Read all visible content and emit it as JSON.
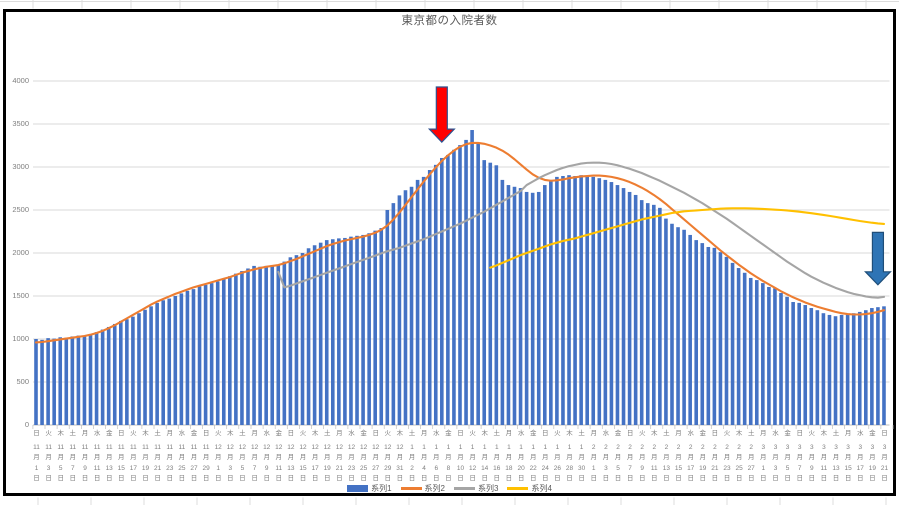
{
  "title": "東京都の入院者数",
  "legend": {
    "items": [
      {
        "label": "系列1",
        "swatch": "bar",
        "color": "#4472C4"
      },
      {
        "label": "系列2",
        "swatch": "line",
        "color": "#ED7D31"
      },
      {
        "label": "系列3",
        "swatch": "line",
        "color": "#A5A5A5"
      },
      {
        "label": "系列4",
        "swatch": "line",
        "color": "#FFC000"
      }
    ]
  },
  "axes": {
    "y_tick_labels": [
      "0",
      "500",
      "1000",
      "1500",
      "2000",
      "2500",
      "3000",
      "3500",
      "4000"
    ],
    "x_tick_labels": [
      [
        "日",
        11,
        1
      ],
      [
        "火",
        11,
        3
      ],
      [
        "木",
        11,
        5
      ],
      [
        "土",
        11,
        7
      ],
      [
        "月",
        11,
        9
      ],
      [
        "水",
        11,
        11
      ],
      [
        "金",
        11,
        13
      ],
      [
        "日",
        11,
        15
      ],
      [
        "火",
        11,
        17
      ],
      [
        "木",
        11,
        19
      ],
      [
        "土",
        11,
        21
      ],
      [
        "月",
        11,
        23
      ],
      [
        "水",
        11,
        25
      ],
      [
        "金",
        11,
        27
      ],
      [
        "日",
        11,
        29
      ],
      [
        "火",
        12,
        1
      ],
      [
        "木",
        12,
        3
      ],
      [
        "土",
        12,
        5
      ],
      [
        "月",
        12,
        7
      ],
      [
        "水",
        12,
        9
      ],
      [
        "金",
        12,
        11
      ],
      [
        "日",
        12,
        13
      ],
      [
        "火",
        12,
        15
      ],
      [
        "木",
        12,
        17
      ],
      [
        "土",
        12,
        19
      ],
      [
        "月",
        12,
        21
      ],
      [
        "水",
        12,
        23
      ],
      [
        "金",
        12,
        25
      ],
      [
        "日",
        12,
        27
      ],
      [
        "火",
        12,
        29
      ],
      [
        "木",
        12,
        31
      ],
      [
        "土",
        1,
        2
      ],
      [
        "月",
        1,
        4
      ],
      [
        "水",
        1,
        6
      ],
      [
        "金",
        1,
        8
      ],
      [
        "日",
        1,
        10
      ],
      [
        "火",
        1,
        12
      ],
      [
        "木",
        1,
        14
      ],
      [
        "土",
        1,
        16
      ],
      [
        "月",
        1,
        18
      ],
      [
        "水",
        1,
        20
      ],
      [
        "金",
        1,
        22
      ],
      [
        "日",
        1,
        24
      ],
      [
        "火",
        1,
        26
      ],
      [
        "木",
        1,
        28
      ],
      [
        "土",
        1,
        30
      ],
      [
        "月",
        2,
        1
      ],
      [
        "水",
        2,
        3
      ],
      [
        "金",
        2,
        5
      ],
      [
        "日",
        2,
        7
      ],
      [
        "火",
        2,
        9
      ],
      [
        "木",
        2,
        11
      ],
      [
        "土",
        2,
        13
      ],
      [
        "月",
        2,
        15
      ],
      [
        "水",
        2,
        17
      ],
      [
        "金",
        2,
        19
      ],
      [
        "日",
        2,
        21
      ],
      [
        "火",
        2,
        23
      ],
      [
        "木",
        2,
        25
      ],
      [
        "土",
        2,
        27
      ],
      [
        "月",
        3,
        1
      ],
      [
        "水",
        3,
        3
      ],
      [
        "金",
        3,
        5
      ],
      [
        "日",
        3,
        7
      ],
      [
        "火",
        3,
        9
      ],
      [
        "木",
        3,
        11
      ],
      [
        "土",
        3,
        13
      ],
      [
        "月",
        3,
        15
      ],
      [
        "水",
        3,
        17
      ],
      [
        "金",
        3,
        19
      ],
      [
        "日",
        3,
        21
      ]
    ]
  },
  "chart_data": {
    "type": "combo",
    "title": "東京都の入院者数",
    "x_months": [
      {
        "month": 11,
        "days": 30
      },
      {
        "month": 12,
        "days": 31
      },
      {
        "month": 1,
        "days": 31
      },
      {
        "month": 2,
        "days": 28
      },
      {
        "month": 3,
        "days": 21
      }
    ],
    "x_label_interval_days": 2,
    "ylim": [
      0,
      4000
    ],
    "y_ticks": [
      0,
      500,
      1000,
      1500,
      2000,
      2500,
      3000,
      3500,
      4000
    ],
    "grid": "horizontal",
    "legend_position": "bottom",
    "series": [
      {
        "name": "系列1",
        "type": "bar",
        "color": "#4472C4",
        "start": 0,
        "values": [
          1000,
          990,
          1010,
          1005,
          1020,
          1015,
          1030,
          1040,
          1030,
          1050,
          1080,
          1110,
          1140,
          1175,
          1210,
          1230,
          1260,
          1300,
          1340,
          1380,
          1420,
          1450,
          1470,
          1500,
          1530,
          1560,
          1580,
          1610,
          1630,
          1650,
          1670,
          1700,
          1730,
          1760,
          1790,
          1820,
          1850,
          1840,
          1850,
          1855,
          1860,
          1900,
          1950,
          1975,
          2000,
          2055,
          2090,
          2120,
          2150,
          2160,
          2170,
          2175,
          2190,
          2200,
          2210,
          2230,
          2260,
          2290,
          2500,
          2580,
          2670,
          2730,
          2770,
          2850,
          2885,
          2965,
          3025,
          3105,
          3140,
          3200,
          3255,
          3315,
          3430,
          3280,
          3080,
          3050,
          3020,
          2850,
          2790,
          2770,
          2755,
          2710,
          2700,
          2710,
          2790,
          2850,
          2885,
          2895,
          2905,
          2895,
          2905,
          2885,
          2885,
          2870,
          2850,
          2825,
          2790,
          2755,
          2710,
          2675,
          2615,
          2580,
          2560,
          2525,
          2400,
          2340,
          2300,
          2270,
          2210,
          2150,
          2115,
          2070,
          2060,
          2010,
          1955,
          1885,
          1825,
          1770,
          1710,
          1685,
          1650,
          1605,
          1590,
          1535,
          1490,
          1430,
          1420,
          1395,
          1360,
          1335,
          1300,
          1280,
          1265,
          1280,
          1285,
          1300,
          1315,
          1335,
          1360,
          1370,
          1380
        ]
      },
      {
        "name": "系列2",
        "type": "line",
        "color": "#ED7D31",
        "start": 0,
        "values": [
          960,
          965,
          975,
          985,
          995,
          1005,
          1015,
          1025,
          1035,
          1050,
          1070,
          1095,
          1125,
          1160,
          1200,
          1240,
          1280,
          1320,
          1360,
          1400,
          1435,
          1465,
          1495,
          1525,
          1550,
          1575,
          1600,
          1620,
          1640,
          1660,
          1680,
          1700,
          1720,
          1745,
          1770,
          1790,
          1810,
          1825,
          1840,
          1850,
          1860,
          1880,
          1905,
          1930,
          1960,
          1990,
          2020,
          2050,
          2080,
          2105,
          2125,
          2145,
          2160,
          2175,
          2190,
          2210,
          2235,
          2270,
          2320,
          2390,
          2470,
          2560,
          2650,
          2740,
          2830,
          2915,
          2995,
          3070,
          3135,
          3190,
          3235,
          3265,
          3280,
          3280,
          3270,
          3250,
          3225,
          3190,
          3145,
          3090,
          3030,
          2970,
          2915,
          2875,
          2850,
          2840,
          2845,
          2855,
          2870,
          2880,
          2890,
          2895,
          2900,
          2900,
          2895,
          2885,
          2870,
          2850,
          2825,
          2795,
          2760,
          2720,
          2675,
          2625,
          2570,
          2510,
          2450,
          2390,
          2330,
          2270,
          2210,
          2150,
          2090,
          2030,
          1975,
          1920,
          1865,
          1815,
          1765,
          1720,
          1675,
          1635,
          1595,
          1555,
          1520,
          1485,
          1455,
          1425,
          1400,
          1375,
          1355,
          1335,
          1315,
          1300,
          1290,
          1285,
          1285,
          1290,
          1300,
          1315,
          1335
        ]
      },
      {
        "name": "系列3",
        "type": "line",
        "color": "#A5A5A5",
        "start": 40,
        "values": [
          1780,
          1600,
          1620,
          1645,
          1670,
          1695,
          1720,
          1745,
          1770,
          1795,
          1820,
          1845,
          1870,
          1895,
          1920,
          1945,
          1970,
          1995,
          2020,
          2040,
          2060,
          2085,
          2110,
          2135,
          2160,
          2190,
          2220,
          2250,
          2280,
          2310,
          2340,
          2375,
          2410,
          2445,
          2480,
          2520,
          2560,
          2600,
          2640,
          2680,
          2720,
          2790,
          2830,
          2870,
          2905,
          2935,
          2965,
          2990,
          3010,
          3025,
          3040,
          3048,
          3050,
          3050,
          3045,
          3035,
          3020,
          3000,
          2980,
          2955,
          2930,
          2900,
          2870,
          2840,
          2805,
          2770,
          2735,
          2700,
          2660,
          2620,
          2580,
          2535,
          2490,
          2445,
          2400,
          2350,
          2300,
          2250,
          2200,
          2150,
          2100,
          2050,
          2000,
          1950,
          1900,
          1855,
          1810,
          1765,
          1725,
          1690,
          1655,
          1625,
          1595,
          1570,
          1545,
          1525,
          1510,
          1495,
          1485,
          1480,
          1490
        ]
      },
      {
        "name": "系列4",
        "type": "line",
        "color": "#FFC000",
        "start": 75,
        "values": [
          1830,
          1855,
          1885,
          1915,
          1945,
          1975,
          2000,
          2025,
          2050,
          2075,
          2100,
          2120,
          2140,
          2155,
          2170,
          2190,
          2210,
          2230,
          2250,
          2270,
          2290,
          2310,
          2330,
          2350,
          2370,
          2390,
          2405,
          2420,
          2435,
          2450,
          2465,
          2475,
          2485,
          2490,
          2495,
          2500,
          2505,
          2510,
          2515,
          2518,
          2520,
          2520,
          2520,
          2518,
          2515,
          2512,
          2508,
          2504,
          2500,
          2495,
          2488,
          2480,
          2472,
          2463,
          2453,
          2443,
          2432,
          2420,
          2408,
          2396,
          2384,
          2372,
          2362,
          2352,
          2344,
          2338
        ]
      }
    ],
    "annotations": [
      {
        "name": "red-down-arrow",
        "shape": "down-arrow",
        "fill": "#FF0000",
        "outline": "#2F528F",
        "x_index": 67,
        "value_from": 3930,
        "value_to": 3290
      },
      {
        "name": "blue-down-arrow",
        "shape": "down-arrow",
        "fill": "#2E74B5",
        "outline": "#1F4E79",
        "x_index": 139,
        "value_from": 2240,
        "value_to": 1630
      }
    ]
  }
}
